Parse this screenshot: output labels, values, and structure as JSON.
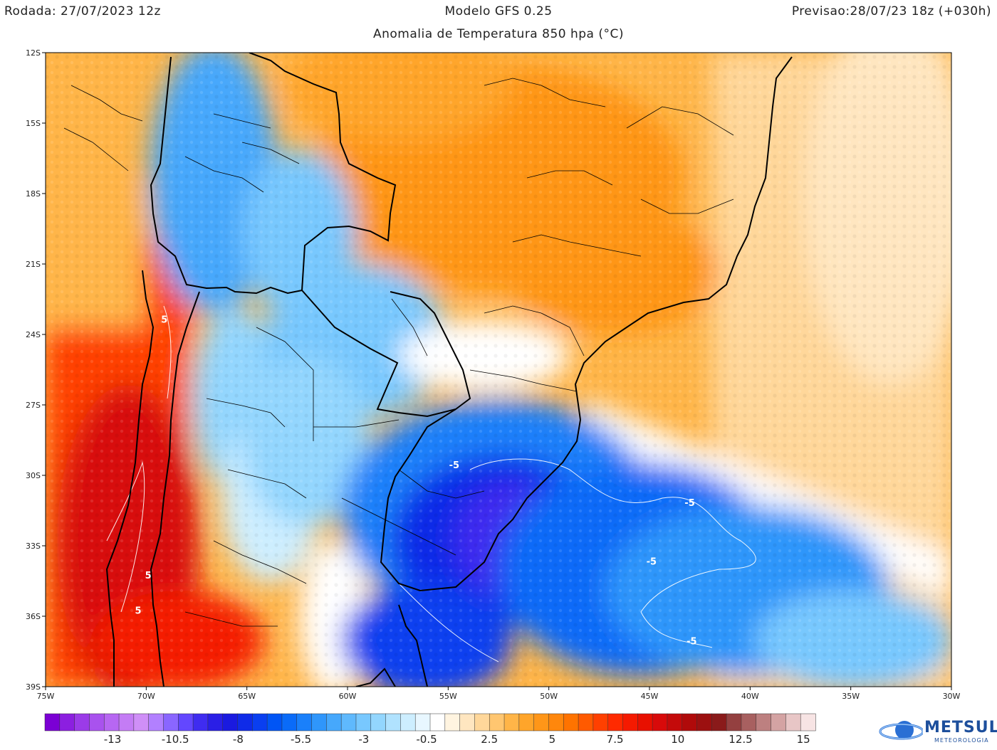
{
  "header": {
    "run": "Rodada: 27/07/2023 12z",
    "model": "Modelo GFS 0.25",
    "forecast": "Previsao:28/07/23 18z (+030h)",
    "subtitle": "Anomalia de Temperatura 850 hpa (°C)"
  },
  "axes": {
    "lat_labels": [
      "12S",
      "15S",
      "18S",
      "21S",
      "24S",
      "27S",
      "30S",
      "33S",
      "36S",
      "39S"
    ],
    "lon_labels": [
      "75W",
      "70W",
      "65W",
      "60W",
      "55W",
      "50W",
      "45W",
      "40W",
      "35W",
      "30W"
    ]
  },
  "contour_labels": [
    {
      "text": "5",
      "lon": -69.1,
      "lat": -23.5
    },
    {
      "text": "5",
      "lon": -69.9,
      "lat": -34.4
    },
    {
      "text": "5",
      "lon": -70.4,
      "lat": -35.9
    },
    {
      "text": "-5",
      "lon": -54.7,
      "lat": -29.7
    },
    {
      "text": "-5",
      "lon": -43.0,
      "lat": -31.3
    },
    {
      "text": "-5",
      "lon": -44.9,
      "lat": -33.8
    },
    {
      "text": "-5",
      "lon": -42.9,
      "lat": -37.2
    }
  ],
  "colorbar": {
    "labels": [
      "-13",
      "-10.5",
      "-8",
      "-5.5",
      "-3",
      "-0.5",
      "2.5",
      "5",
      "7.5",
      "10",
      "12.5",
      "15"
    ],
    "colors": [
      "#7b00d4",
      "#8c1fe0",
      "#9b3be8",
      "#a952ee",
      "#b767f2",
      "#c47cf5",
      "#cf8ff7",
      "#b280ff",
      "#8a66ff",
      "#6347ff",
      "#3f2cf0",
      "#2a1fe6",
      "#1a1ae0",
      "#0f2be8",
      "#0a3ff0",
      "#0055f5",
      "#0a6bf8",
      "#1a80fa",
      "#2f96fb",
      "#46a8fc",
      "#5fb9fd",
      "#78c8fe",
      "#93d6fe",
      "#b0e2fe",
      "#cdeeff",
      "#e8f7ff",
      "#ffffff",
      "#fff4e0",
      "#ffe6c0",
      "#ffd79a",
      "#ffc670",
      "#ffb548",
      "#ffa52a",
      "#ff9618",
      "#ff870c",
      "#ff7300",
      "#ff5a00",
      "#ff4000",
      "#ff2a00",
      "#f51a00",
      "#e81000",
      "#d80a0a",
      "#c40a0a",
      "#b00a0a",
      "#9c1010",
      "#8a1a1a",
      "#944040",
      "#a86060",
      "#bd8080",
      "#d4a3a3",
      "#e8c6c6",
      "#f7e4e4"
    ]
  },
  "logo": {
    "text": "METSUL",
    "sub": "METEOROLOGIA"
  }
}
